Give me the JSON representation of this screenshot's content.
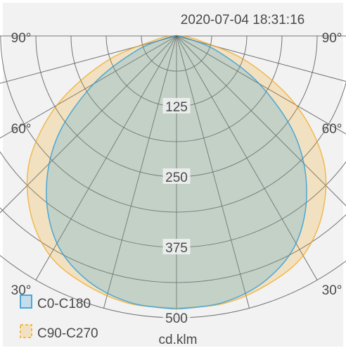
{
  "chart_data": {
    "type": "polar-photometric",
    "timestamp": "2020-07-04 18:31:16",
    "unit_label": "cd.klm",
    "radial_ticks": [
      "125",
      "250",
      "375",
      "500"
    ],
    "radial_tick_values": [
      125,
      250,
      375,
      500
    ],
    "rmax": 500,
    "angle_labels": {
      "top_left": "90°",
      "top_right": "90°",
      "mid_left": "60°",
      "mid_right": "60°",
      "low_left": "30°",
      "low_right": "30°"
    },
    "grid_angle_step_deg": 15,
    "grid_angle_max_deg": 90,
    "angles_deg": [
      0,
      10,
      20,
      30,
      40,
      50,
      60,
      70,
      80,
      90
    ],
    "series": [
      {
        "name": "C0-C180",
        "color": "#4aa8d8",
        "fill": "rgba(74,168,216,0.28)",
        "values": [
          485,
          480,
          462,
          425,
          360,
          275,
          170,
          75,
          12,
          0
        ]
      },
      {
        "name": "C90-C270",
        "color": "#f0b950",
        "fill": "rgba(243,185,80,0.30)",
        "values": [
          483,
          482,
          470,
          450,
          405,
          340,
          245,
          135,
          35,
          0
        ]
      }
    ]
  }
}
